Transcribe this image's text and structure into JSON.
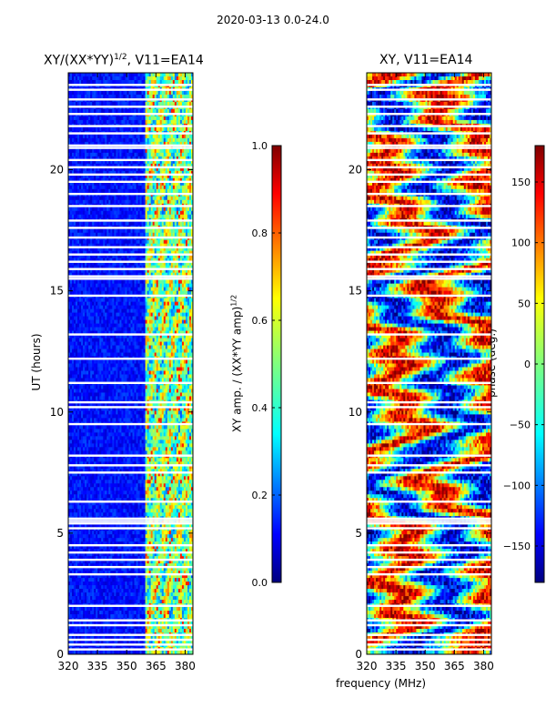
{
  "figure": {
    "suptitle": "2020-03-13 0.0-24.0",
    "xlabel": "frequency (MHz)"
  },
  "chart_data": [
    {
      "type": "heatmap",
      "title_main": "XY/(XX*YY)",
      "title_exp": "1/2",
      "title_rest": ", V11=EA14",
      "xlabel": "frequency (MHz)",
      "ylabel": "UT (hours)",
      "xlim": [
        320,
        384
      ],
      "ylim": [
        0,
        24
      ],
      "xticks": [
        "320",
        "335",
        "350",
        "365",
        "380"
      ],
      "xtick_values": [
        320,
        335,
        350,
        365,
        380
      ],
      "yticks": [
        "0",
        "5",
        "10",
        "15",
        "20"
      ],
      "ytick_values": [
        0,
        5,
        10,
        15,
        20
      ],
      "colormap": "jet",
      "colorbar": {
        "label_main": "XY amp. / (XX*YY amp)",
        "label_exp": "1/2",
        "range": [
          0.0,
          1.0
        ],
        "ticks": [
          "0.0",
          "0.2",
          "0.4",
          "0.6",
          "0.8",
          "1.0"
        ],
        "tick_values": [
          0.0,
          0.2,
          0.4,
          0.6,
          0.8,
          1.0
        ]
      },
      "bright_band_mhz": [
        360,
        384
      ],
      "flagged_ut_hours": [
        0.2,
        0.4,
        0.6,
        0.8,
        1.2,
        1.4,
        2.0,
        3.3,
        3.6,
        3.9,
        4.2,
        4.5,
        5.2,
        5.4,
        5.5,
        5.6,
        6.3,
        7.5,
        7.8,
        8.2,
        9.5,
        10.2,
        10.4,
        11.2,
        12.2,
        13.2,
        14.8,
        15.5,
        15.6,
        15.9,
        16.2,
        16.5,
        16.8,
        17.2,
        17.6,
        17.9,
        18.5,
        19.0,
        19.5,
        19.8,
        20.1,
        20.4,
        20.9,
        21.0,
        21.5,
        21.8,
        22.3,
        22.6,
        22.9,
        23.3,
        23.5
      ]
    },
    {
      "type": "heatmap",
      "title": "XY, V11=EA14",
      "xlabel": "frequency (MHz)",
      "ylabel": "",
      "xlim": [
        320,
        384
      ],
      "ylim": [
        0,
        24
      ],
      "xticks": [
        "320",
        "335",
        "350",
        "365",
        "380"
      ],
      "xtick_values": [
        320,
        335,
        350,
        365,
        380
      ],
      "yticks": [
        "0",
        "5",
        "10",
        "15",
        "20"
      ],
      "ytick_values": [
        0,
        5,
        10,
        15,
        20
      ],
      "colormap": "jet",
      "colorbar": {
        "label": "phase (deg.)",
        "range": [
          -180,
          180
        ],
        "ticks": [
          "−150",
          "−100",
          "−50",
          "0",
          "50",
          "100",
          "150"
        ],
        "tick_values": [
          -150,
          -100,
          -50,
          0,
          50,
          100,
          150
        ]
      },
      "flagged_ut_hours": [
        0.2,
        0.4,
        0.6,
        0.8,
        1.2,
        1.4,
        2.0,
        3.3,
        3.6,
        3.9,
        4.2,
        4.5,
        5.2,
        5.4,
        5.5,
        5.6,
        6.3,
        7.5,
        7.8,
        8.2,
        9.5,
        10.2,
        10.4,
        11.2,
        12.2,
        13.2,
        14.8,
        15.5,
        15.6,
        15.9,
        16.2,
        16.5,
        16.8,
        17.2,
        17.6,
        17.9,
        18.5,
        19.0,
        19.5,
        19.8,
        20.1,
        20.4,
        20.9,
        21.0,
        21.5,
        21.8,
        22.3,
        22.6,
        22.9,
        23.3,
        23.5
      ]
    }
  ]
}
